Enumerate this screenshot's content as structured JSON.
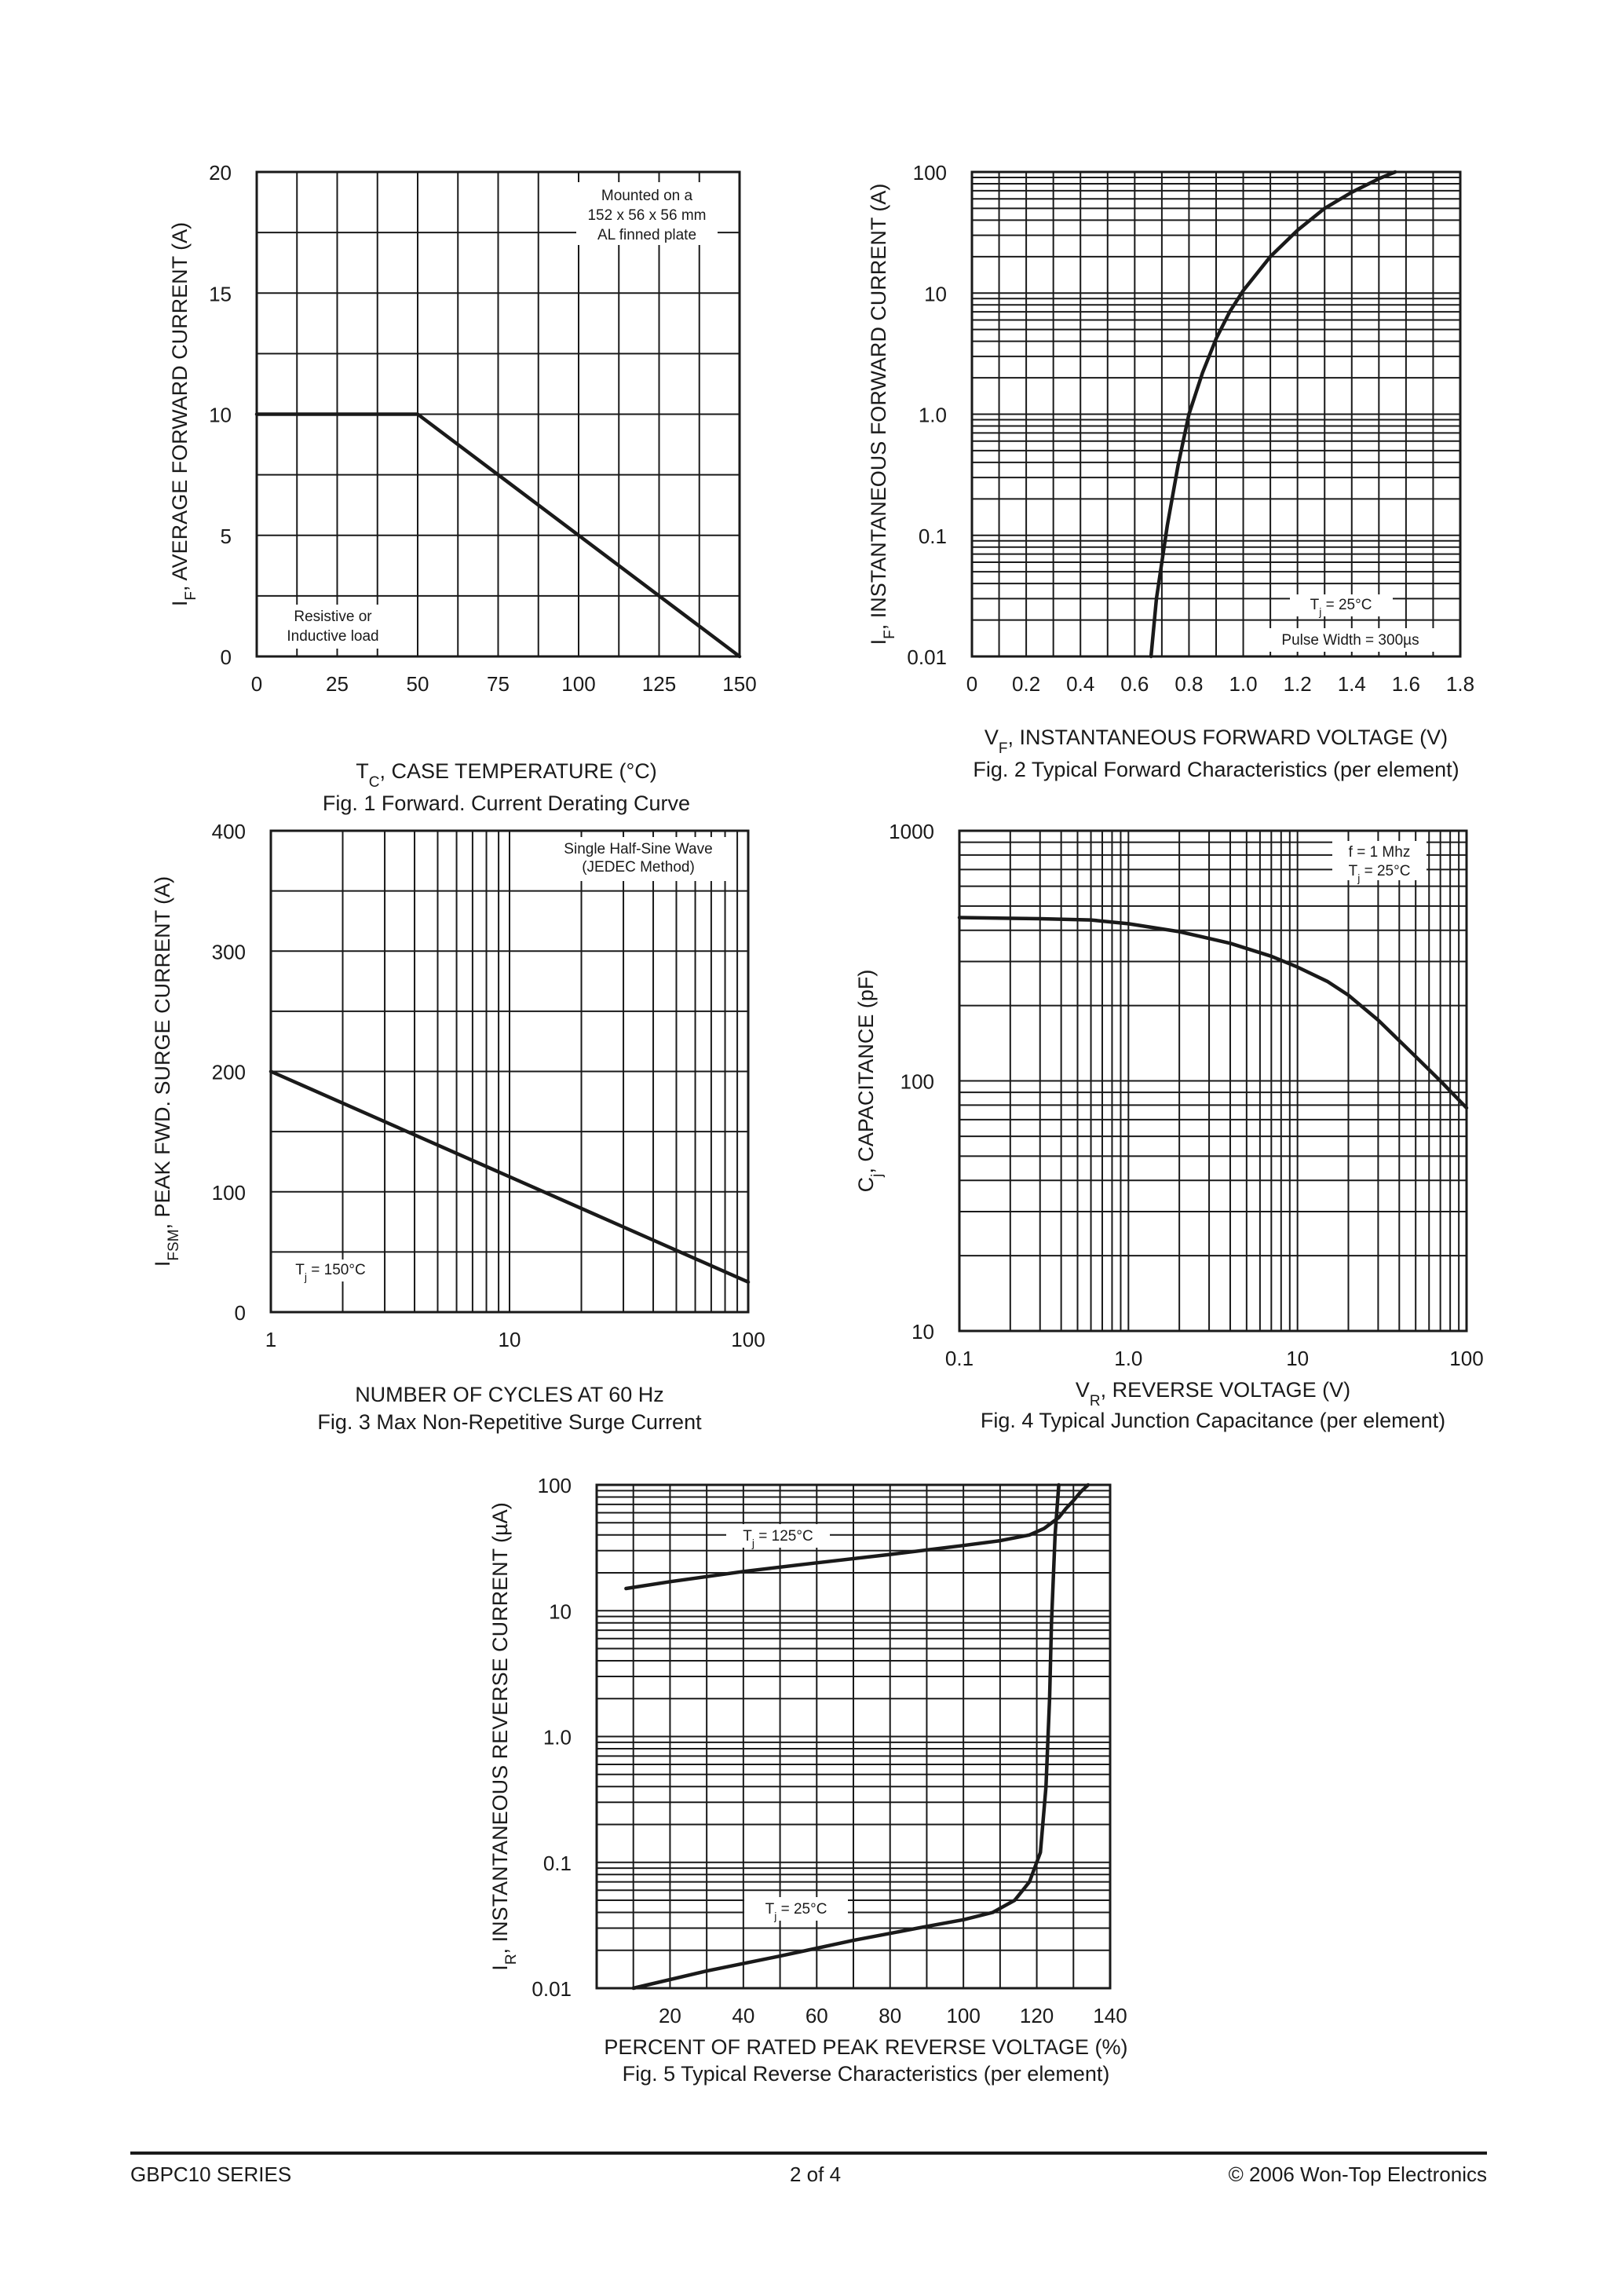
{
  "footer": {
    "left": "GBPC10 SERIES",
    "center": "2 of 4",
    "right": "© 2006 Won-Top Electronics"
  },
  "chart_data": [
    {
      "id": "fig1",
      "type": "line",
      "caption": "Fig. 1  Forward. Current Derating Curve",
      "xlabel": {
        "main": "T",
        "sub": "C",
        "rest": ", CASE TEMPERATURE (°C)"
      },
      "ylabel": {
        "main": "I",
        "sub": "F",
        "rest": ", AVERAGE FORWARD CURRENT (A)"
      },
      "x_scale": "linear",
      "y_scale": "linear",
      "xlim": [
        0,
        150
      ],
      "ylim": [
        0,
        20
      ],
      "xticks": [
        "0",
        "25",
        "50",
        "75",
        "100",
        "125",
        "150"
      ],
      "yticks": [
        "0",
        "5",
        "10",
        "15",
        "20"
      ],
      "notes": [
        [
          "Mounted on a",
          "152 x 56 x 56 mm",
          "AL finned plate"
        ],
        [
          "Resistive or",
          "Inductive load"
        ]
      ],
      "series": [
        {
          "x": [
            0,
            50,
            150
          ],
          "y": [
            10,
            10,
            0
          ]
        }
      ]
    },
    {
      "id": "fig2",
      "type": "line",
      "caption": "Fig. 2  Typical Forward Characteristics (per element)",
      "xlabel": {
        "main": "V",
        "sub": "F",
        "rest": ", INSTANTANEOUS FORWARD VOLTAGE (V)"
      },
      "ylabel": {
        "main": "I",
        "sub": "F",
        "rest": ", INSTANTANEOUS FORWARD CURRENT (A)"
      },
      "x_scale": "linear",
      "y_scale": "log",
      "xlim": [
        0,
        1.8
      ],
      "ylim": [
        0.01,
        100
      ],
      "xticks": [
        "0",
        "0.2",
        "0.4",
        "0.6",
        "0.8",
        "1.0",
        "1.2",
        "1.4",
        "1.6",
        "1.8"
      ],
      "yticks": [
        "0.01",
        "0.1",
        "1.0",
        "10",
        "100"
      ],
      "notes": [
        [
          "T",
          "j",
          " = 25°C"
        ],
        [
          "Pulse Width = 300µs"
        ]
      ],
      "series": [
        {
          "x": [
            0.66,
            0.68,
            0.72,
            0.76,
            0.8,
            0.85,
            0.9,
            0.95,
            1.0,
            1.1,
            1.2,
            1.3,
            1.4,
            1.5,
            1.56
          ],
          "y": [
            0.01,
            0.03,
            0.12,
            0.38,
            1.0,
            2.2,
            4.2,
            7.0,
            10.5,
            20,
            33,
            50,
            68,
            88,
            100
          ]
        }
      ]
    },
    {
      "id": "fig3",
      "type": "line",
      "caption": "Fig. 3  Max Non-Repetitive Surge Current",
      "xlabel": {
        "main": "NUMBER OF CYCLES AT 60 Hz",
        "sub": "",
        "rest": ""
      },
      "ylabel": {
        "main": "I",
        "sub": "FSM",
        "rest": ", PEAK FWD. SURGE CURRENT (A)"
      },
      "x_scale": "log",
      "y_scale": "linear",
      "xlim": [
        1,
        100
      ],
      "ylim": [
        0,
        400
      ],
      "xticks": [
        "1",
        "10",
        "100"
      ],
      "yticks": [
        "0",
        "100",
        "200",
        "300",
        "400"
      ],
      "notes": [
        [
          "Single Half-Sine Wave",
          "(JEDEC Method)"
        ],
        [
          "T",
          "j",
          " = 150°C"
        ]
      ],
      "series": [
        {
          "x": [
            1,
            100
          ],
          "y": [
            200,
            25
          ]
        }
      ]
    },
    {
      "id": "fig4",
      "type": "line",
      "caption": "Fig. 4  Typical Junction Capacitance (per element)",
      "xlabel": {
        "main": "V",
        "sub": "R",
        "rest": ", REVERSE VOLTAGE (V)"
      },
      "ylabel": {
        "main": "C",
        "sub": "j",
        "rest": ", CAPACITANCE (pF)"
      },
      "x_scale": "log",
      "y_scale": "log",
      "xlim": [
        0.1,
        100
      ],
      "ylim": [
        10,
        1000
      ],
      "xticks": [
        "0.1",
        "1.0",
        "10",
        "100"
      ],
      "yticks": [
        "10",
        "100",
        "1000"
      ],
      "notes": [
        [
          "f = 1 Mhz"
        ],
        [
          "T",
          "j",
          " = 25°C"
        ]
      ],
      "series": [
        {
          "x": [
            0.1,
            0.3,
            0.6,
            1,
            2,
            4,
            7,
            10,
            15,
            20,
            30,
            50,
            70,
            100
          ],
          "y": [
            450,
            445,
            440,
            425,
            395,
            355,
            315,
            285,
            250,
            220,
            175,
            125,
            100,
            78
          ]
        }
      ]
    },
    {
      "id": "fig5",
      "type": "line",
      "caption": "Fig. 5  Typical Reverse Characteristics (per element)",
      "xlabel": {
        "main": "PERCENT OF RATED PEAK  REVERSE VOLTAGE (%)",
        "sub": "",
        "rest": ""
      },
      "ylabel": {
        "main": "I",
        "sub": "R",
        "rest": ", INSTANTANEOUS REVERSE CURRENT (µA)"
      },
      "x_scale": "linear",
      "y_scale": "log",
      "xlim": [
        0,
        140
      ],
      "ylim": [
        0.01,
        100
      ],
      "xticks": [
        "20",
        "40",
        "60",
        "80",
        "100",
        "120",
        "140"
      ],
      "yticks": [
        "0.01",
        "0.1",
        "1.0",
        "10",
        "100"
      ],
      "notes": [
        [
          "T",
          "j",
          " = 125°C"
        ],
        [
          "T",
          "j",
          " = 25°C"
        ]
      ],
      "series": [
        {
          "x": [
            8,
            20,
            40,
            60,
            80,
            100,
            110,
            118,
            122,
            126,
            128,
            130,
            132,
            134
          ],
          "y": [
            15,
            17,
            20.5,
            24,
            28,
            33,
            36,
            40,
            45,
            55,
            65,
            75,
            88,
            100
          ]
        },
        {
          "x": [
            10,
            30,
            50,
            70,
            90,
            100,
            108,
            114,
            118,
            121,
            122.5,
            123.5,
            124,
            125,
            126
          ],
          "y": [
            0.01,
            0.0137,
            0.018,
            0.024,
            0.031,
            0.035,
            0.04,
            0.05,
            0.07,
            0.12,
            0.4,
            2,
            8,
            40,
            100
          ]
        }
      ]
    }
  ]
}
